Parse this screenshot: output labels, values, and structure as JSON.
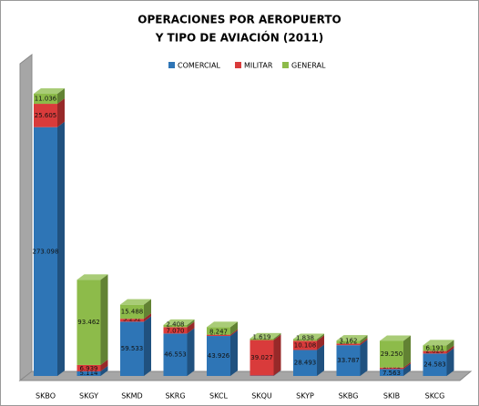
{
  "chart_data": {
    "type": "bar3d_stacked",
    "title_lines": [
      "OPERACIONES POR AEROPUERTO",
      "Y TIPO DE AVIACIÓN  (2011)"
    ],
    "categories": [
      "SKBO",
      "SKGY",
      "SKMD",
      "SKRG",
      "SKCL",
      "SKQU",
      "SKYP",
      "SKBG",
      "SKIB",
      "SKCG"
    ],
    "series": [
      {
        "name": "COMERCIAL",
        "color": "#2e75b6",
        "values": [
          273098,
          5114,
          59533,
          46553,
          43926,
          407,
          28493,
          33787,
          7563,
          24583
        ],
        "value_labels": [
          "273.098",
          "5.114",
          "59.533",
          "46.553",
          "43.926",
          "407",
          "28.493",
          "33.787",
          "7.563",
          "24.583"
        ]
      },
      {
        "name": "MILITAR",
        "color": "#d93b3b",
        "values": [
          25605,
          6939,
          3232,
          7070,
          1419,
          39027,
          10108,
          1870,
          1661,
          2820
        ],
        "value_labels": [
          "25.605",
          "6.939",
          "3.232",
          "7.070",
          "1.419",
          "39.027",
          "10.108",
          "1.870",
          "1.661",
          "2.820"
        ]
      },
      {
        "name": "GENERAL",
        "color": "#8dbb4a",
        "values": [
          11036,
          93462,
          15488,
          2408,
          8247,
          1619,
          1838,
          3162,
          29250,
          6191
        ],
        "value_labels": [
          "11.036",
          "93.462",
          "15.488",
          "2.408",
          "8.247",
          "1.619",
          "1.838",
          "3.162",
          "29.250",
          "6.191"
        ]
      }
    ],
    "legend": "top"
  }
}
